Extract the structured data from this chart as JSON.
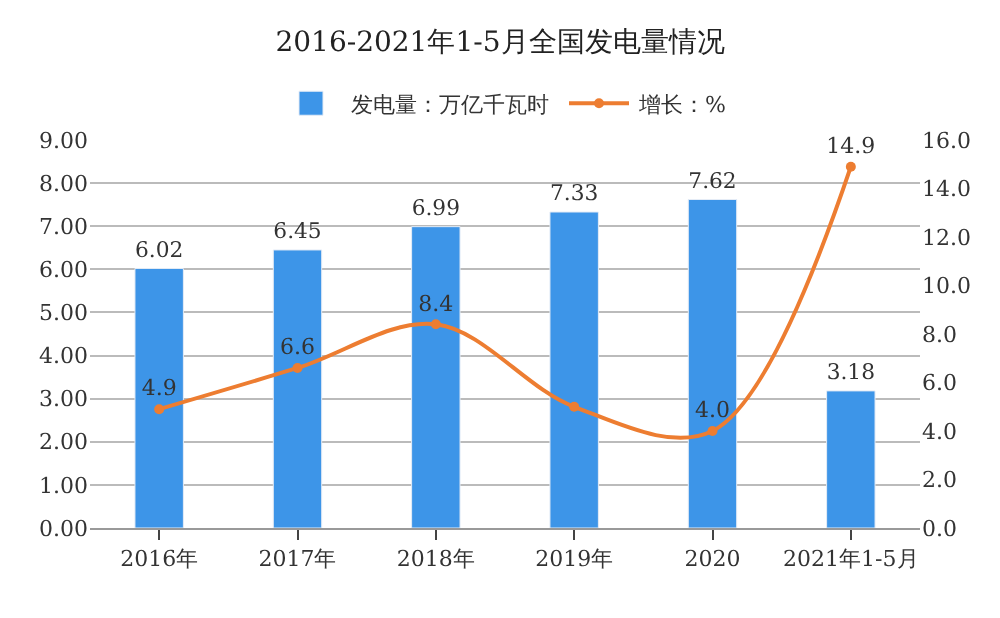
{
  "chart_data": {
    "type": "bar",
    "title": "2016-2021年1-5月全国发电量情况",
    "categories": [
      "2016年",
      "2017年",
      "2018年",
      "2019年",
      "2020",
      "2021年1-5月"
    ],
    "series": [
      {
        "name": "发电量：万亿千瓦时",
        "color": "#3d95e8",
        "values": [
          6.02,
          6.45,
          6.99,
          7.33,
          7.62,
          3.18
        ],
        "value_labels": [
          "6.02",
          "6.45",
          "6.99",
          "7.33",
          "7.62",
          "3.18"
        ]
      },
      {
        "name": "增长：%",
        "type": "line",
        "axis": "y2",
        "color": "#ed7d31",
        "marker": "circle",
        "values": [
          4.9,
          6.6,
          8.4,
          5.0,
          4.0,
          14.9
        ],
        "value_labels": [
          "4.9",
          "6.6",
          "8.4",
          null,
          "4.0",
          "14.9"
        ]
      }
    ],
    "ylim": [
      0,
      9
    ],
    "yticks": [
      {
        "value": 0,
        "label": "0.00"
      },
      {
        "value": 1,
        "label": "1.00"
      },
      {
        "value": 2,
        "label": "2.00"
      },
      {
        "value": 3,
        "label": "3.00"
      },
      {
        "value": 4,
        "label": "4.00"
      },
      {
        "value": 5,
        "label": "5.00"
      },
      {
        "value": 6,
        "label": "6.00"
      },
      {
        "value": 7,
        "label": "7.00"
      },
      {
        "value": 8,
        "label": "8.00"
      },
      {
        "value": 9,
        "label": "9.00"
      }
    ],
    "y2lim": [
      0,
      16
    ],
    "y2ticks": [
      {
        "value": 0,
        "label": "0.0"
      },
      {
        "value": 2,
        "label": "2.0"
      },
      {
        "value": 4,
        "label": "4.0"
      },
      {
        "value": 6,
        "label": "6.0"
      },
      {
        "value": 8,
        "label": "8.0"
      },
      {
        "value": 10,
        "label": "10.0"
      },
      {
        "value": 12,
        "label": "12.0"
      },
      {
        "value": 14,
        "label": "14.0"
      },
      {
        "value": 16,
        "label": "16.0"
      }
    ],
    "grid": "y",
    "legend": "top"
  }
}
